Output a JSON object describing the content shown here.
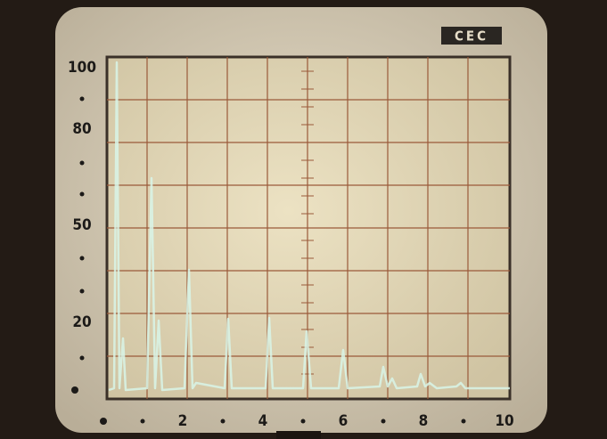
{
  "logo": "CEC",
  "y_labels": [
    "100",
    "80",
    "50",
    "20"
  ],
  "x_labels": [
    "2",
    "4",
    "6",
    "8",
    "10"
  ]
}
